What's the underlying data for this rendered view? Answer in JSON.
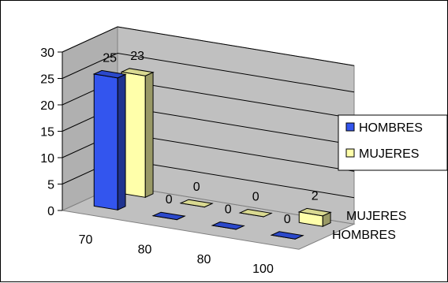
{
  "chart_data": {
    "type": "bar",
    "subtype": "3d-clustered-column",
    "categories": [
      "70",
      "80",
      "80",
      "100"
    ],
    "series": [
      {
        "name": "HOMBRES",
        "values": [
          25,
          0,
          0,
          0
        ],
        "color": "#3355ee"
      },
      {
        "name": "MUJERES",
        "values": [
          23,
          0,
          0,
          2
        ],
        "color": "#ffffaa"
      }
    ],
    "depth_labels": [
      "MUJERES",
      "HOMBRES"
    ],
    "y_ticks": [
      "0",
      "5",
      "10",
      "15",
      "20",
      "25",
      "30"
    ],
    "ylim": [
      0,
      30
    ],
    "grid": true,
    "legend_position": "right",
    "wall_color": "#c0c0c0"
  }
}
